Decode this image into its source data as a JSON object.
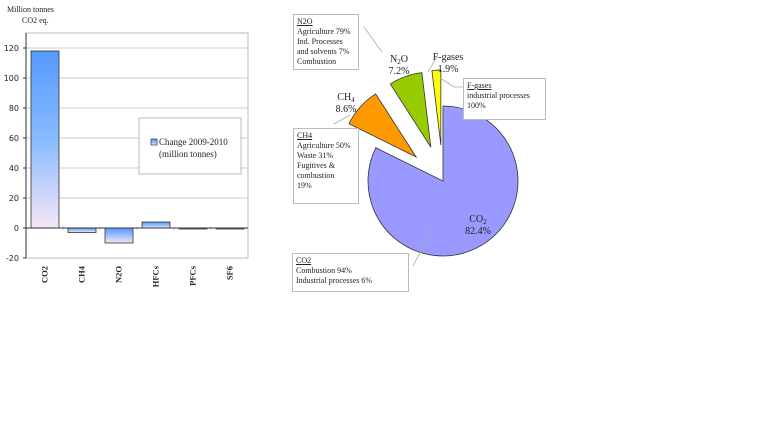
{
  "chart_data": [
    {
      "type": "bar",
      "ylabel": "Million tonnes CO2 eq.",
      "ylabel_lines": [
        "Million tonnes",
        "CO2 eq."
      ],
      "categories": [
        "CO2",
        "CH4",
        "N2O",
        "HFCs",
        "PFCs",
        "SF6"
      ],
      "values": [
        118,
        -3,
        -10,
        4,
        -0.3,
        -0.3
      ],
      "yticks": [
        120,
        100,
        80,
        60,
        40,
        20,
        0,
        -20
      ],
      "ylim": [
        -20,
        130
      ],
      "legend": {
        "lines": [
          "Change 2009-2010",
          "(million tonnes)"
        ],
        "placement": "center-right"
      },
      "grid": true
    },
    {
      "type": "pie",
      "slices": [
        {
          "label": "CO",
          "sub": "2",
          "pct": "82.4%",
          "value": 82.4,
          "color": "#9999ff",
          "note_title": "CO2",
          "note_lines": [
            "Combustion 94%",
            "Industrial processes 6%"
          ]
        },
        {
          "label": "CH",
          "sub": "4",
          "pct": "8.6%",
          "value": 8.6,
          "color": "#ff9900",
          "note_title": "CH4",
          "note_lines": [
            "Agriculture 50%",
            "Waste 31%",
            "Fugitives &",
            "combustion",
            "19%"
          ]
        },
        {
          "label": "N",
          "sub": "2",
          "label2": "O",
          "pct": "7.2%",
          "value": 7.2,
          "color": "#99cc00",
          "note_title": "N2O",
          "note_lines": [
            "Agriculture 79%",
            "Ind. Processes",
            "and solvents 7%",
            "Combustion"
          ]
        },
        {
          "label": "F-gases",
          "pct": "1.9%",
          "value": 1.9,
          "color": "#ffff00",
          "note_title": "F-gases",
          "note_lines": [
            "industrial processes",
            "100%"
          ]
        }
      ]
    }
  ]
}
